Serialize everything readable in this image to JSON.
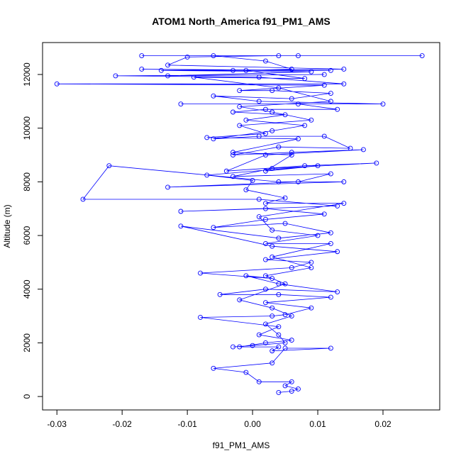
{
  "chart_data": {
    "type": "line",
    "title": "ATOM1 North_America f91_PM1_AMS",
    "x_label": "f91_PM1_AMS",
    "y_label": "Altitude (m)",
    "color": "#0000ff",
    "xlim": [
      -0.0322,
      0.0287
    ],
    "ylim": [
      -500,
      13190
    ],
    "xticks": [
      -0.03,
      -0.02,
      -0.01,
      {
        "value": 0,
        "label": "0.00"
      },
      0.01,
      0.02
    ],
    "yticks": [
      0,
      2000,
      4000,
      6000,
      8000,
      10000,
      12000
    ],
    "x": [
      0.004,
      0.006,
      0.007,
      0.005,
      0.006,
      0.001,
      -0.001,
      -0.006,
      0.003,
      0.005,
      0.012,
      0.003,
      0.004,
      -0.002,
      0.002,
      0.006,
      0.001,
      0.004,
      -0.008,
      0.003,
      0.005,
      0.009,
      0.002,
      0.012,
      0.004,
      -0.005,
      0.002,
      0.013,
      0.004,
      -0.001,
      0.003,
      -0.008,
      0.006,
      0.009,
      0.002,
      0.013,
      0.003,
      -0.011,
      0.004,
      0.012,
      0.005,
      -0.006,
      0.002,
      0.011,
      0.002,
      -0.011,
      0.013,
      0.001,
      -0.026,
      -0.022,
      0.004,
      0.014,
      -0.013,
      0.007,
      0.012,
      -0.003,
      0.003,
      0.019,
      0.008,
      -0.004,
      0.002,
      0.017,
      0.006,
      -0.003,
      0.004,
      0.015,
      0.011,
      0.001,
      -0.006,
      0.003,
      0.008,
      -0.001,
      0.005,
      -0.003,
      0.002,
      0.013,
      0.007,
      -0.011,
      0.02,
      0.001,
      -0.006,
      0.006,
      0.012,
      0.003,
      -0.002,
      0.011,
      -0.03,
      0.014,
      0.001,
      -0.021,
      0.011,
      -0.013,
      0.009,
      -0.014,
      0.012,
      -0.017,
      -0.003,
      0.014,
      -0.013,
      -0.01,
      0.004,
      -0.017,
      0.026,
      0.007,
      -0.006,
      0.002,
      0.006,
      -0.001,
      0.008,
      -0.009,
      0.004,
      0.012,
      -0.002,
      0.003,
      0.009,
      -0.002,
      0.002,
      -0.007,
      0.007,
      -0.003,
      0.006,
      0.002,
      0.01,
      -0.007,
      0.0,
      -0.001,
      0.005,
      0.002,
      0.014,
      0.001,
      0.003,
      0.01,
      0.002,
      0.012,
      0.003,
      0.009,
      0.002,
      0.005,
      -0.002,
      0.003,
      0.006,
      0.002,
      0.004,
      0.005,
      0.0,
      -0.003
    ],
    "values": [
      150,
      200,
      280,
      400,
      550,
      550,
      900,
      1050,
      1250,
      1800,
      1800,
      1700,
      1850,
      1850,
      2000,
      2100,
      2300,
      2600,
      2950,
      3000,
      3050,
      3300,
      3500,
      3700,
      3800,
      3800,
      4000,
      3900,
      4200,
      4500,
      4400,
      4600,
      4800,
      5000,
      5100,
      5400,
      5600,
      6350,
      5900,
      6100,
      6450,
      6300,
      6600,
      6800,
      7000,
      6900,
      7100,
      7350,
      7350,
      8600,
      8000,
      8000,
      7800,
      8000,
      8300,
      8200,
      8500,
      8700,
      8600,
      8400,
      9000,
      9200,
      9100,
      9000,
      9300,
      9250,
      9700,
      9700,
      9600,
      9900,
      10100,
      10300,
      10500,
      10600,
      10700,
      10700,
      10900,
      10900,
      10900,
      11000,
      11200,
      11100,
      11300,
      11400,
      11400,
      11600,
      11650,
      11650,
      11900,
      11950,
      12000,
      11950,
      12100,
      12150,
      12150,
      12200,
      12150,
      12200,
      12350,
      12650,
      12700,
      12700,
      12700,
      12700,
      12700,
      12500,
      12200,
      12150,
      11850,
      11900,
      11500,
      11000,
      10800,
      10600,
      10300,
      10100,
      9800,
      9650,
      9600,
      9100,
      9000,
      8400,
      8600,
      8250,
      8050,
      7700,
      7400,
      7200,
      7200,
      6700,
      6200,
      6000,
      5700,
      5700,
      5200,
      4800,
      4500,
      4200,
      3600,
      3300,
      3000,
      2700,
      2300,
      2000,
      1900,
      1850
    ]
  }
}
